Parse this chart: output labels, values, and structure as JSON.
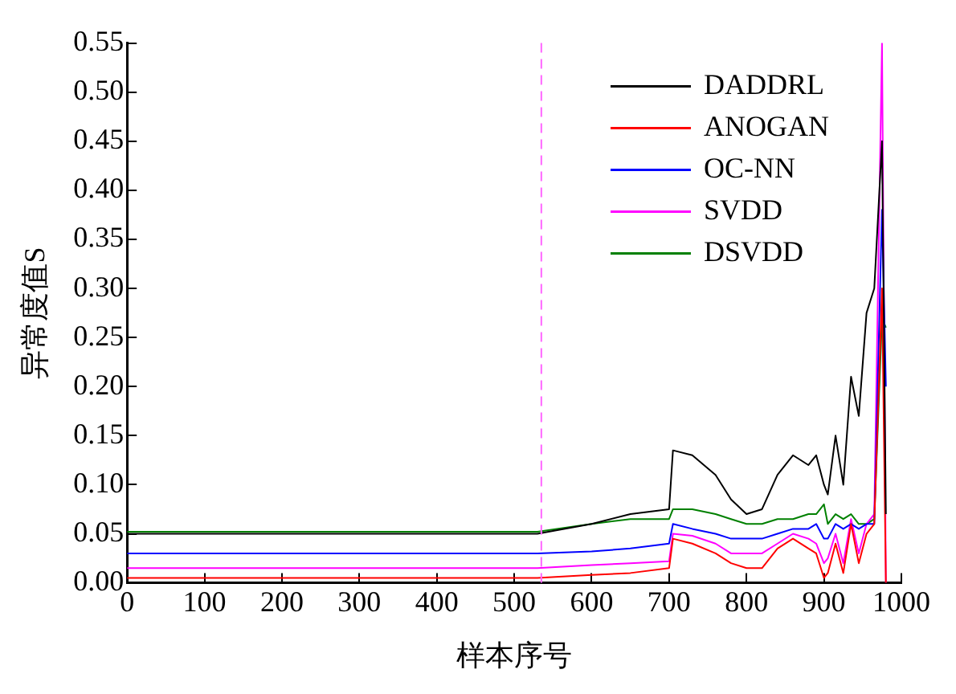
{
  "chart_data": {
    "type": "line",
    "xlabel": "样本序号",
    "ylabel": "异常度值S",
    "x": [
      0,
      100,
      200,
      300,
      400,
      500,
      530,
      600,
      650,
      700,
      705,
      730,
      760,
      780,
      800,
      820,
      840,
      860,
      880,
      890,
      900,
      905,
      915,
      925,
      935,
      945,
      955,
      965,
      975,
      980
    ],
    "series": [
      {
        "name": "DADDRL",
        "color": "#000000",
        "values": [
          0.05,
          0.05,
          0.05,
          0.05,
          0.05,
          0.05,
          0.05,
          0.06,
          0.07,
          0.075,
          0.135,
          0.13,
          0.11,
          0.085,
          0.07,
          0.075,
          0.11,
          0.13,
          0.12,
          0.13,
          0.1,
          0.09,
          0.15,
          0.1,
          0.21,
          0.17,
          0.275,
          0.3,
          0.45,
          0.07
        ]
      },
      {
        "name": "ANOGAN",
        "color": "#ff0000",
        "values": [
          0.005,
          0.005,
          0.005,
          0.005,
          0.005,
          0.005,
          0.005,
          0.008,
          0.01,
          0.015,
          0.045,
          0.04,
          0.03,
          0.02,
          0.015,
          0.015,
          0.035,
          0.045,
          0.035,
          0.03,
          0.005,
          0.01,
          0.04,
          0.01,
          0.06,
          0.02,
          0.05,
          0.06,
          0.3,
          0.0
        ]
      },
      {
        "name": "OC-NN",
        "color": "#0000ff",
        "values": [
          0.03,
          0.03,
          0.03,
          0.03,
          0.03,
          0.03,
          0.03,
          0.032,
          0.035,
          0.04,
          0.06,
          0.055,
          0.05,
          0.045,
          0.045,
          0.045,
          0.05,
          0.055,
          0.055,
          0.06,
          0.045,
          0.045,
          0.06,
          0.055,
          0.06,
          0.055,
          0.06,
          0.06,
          0.38,
          0.2
        ]
      },
      {
        "name": "SVDD",
        "color": "#ff00ff",
        "values": [
          0.015,
          0.015,
          0.015,
          0.015,
          0.015,
          0.015,
          0.015,
          0.018,
          0.02,
          0.022,
          0.05,
          0.048,
          0.04,
          0.03,
          0.03,
          0.03,
          0.04,
          0.05,
          0.045,
          0.04,
          0.02,
          0.025,
          0.05,
          0.02,
          0.065,
          0.03,
          0.06,
          0.07,
          0.55,
          0.0
        ]
      },
      {
        "name": "DSVDD",
        "color": "#008000",
        "values": [
          0.052,
          0.052,
          0.052,
          0.052,
          0.052,
          0.052,
          0.052,
          0.06,
          0.065,
          0.065,
          0.075,
          0.075,
          0.07,
          0.065,
          0.06,
          0.06,
          0.065,
          0.065,
          0.07,
          0.07,
          0.08,
          0.06,
          0.07,
          0.065,
          0.07,
          0.06,
          0.06,
          0.065,
          0.27,
          0.26
        ]
      }
    ],
    "xlim": [
      0,
      1000
    ],
    "xticks": [
      0,
      100,
      200,
      300,
      400,
      500,
      600,
      700,
      800,
      900,
      1000
    ],
    "ylim": [
      0,
      0.55
    ],
    "yticks": [
      {
        "value": 0,
        "label": "0.00"
      },
      0.05,
      {
        "value": 0.1,
        "label": "0.10"
      },
      0.15,
      {
        "value": 0.2,
        "label": "0.20"
      },
      0.25,
      {
        "value": 0.3,
        "label": "0.30"
      },
      0.35,
      {
        "value": 0.4,
        "label": "0.40"
      },
      0.45,
      {
        "value": 0.5,
        "label": "0.50"
      },
      0.55
    ],
    "ref_lines": [
      {
        "axis": "x",
        "value": 535,
        "color": "#ff66ff",
        "line_style": "dashed"
      }
    ],
    "grid": false,
    "legend": "top right",
    "marker": "none",
    "line_style": "solid"
  }
}
